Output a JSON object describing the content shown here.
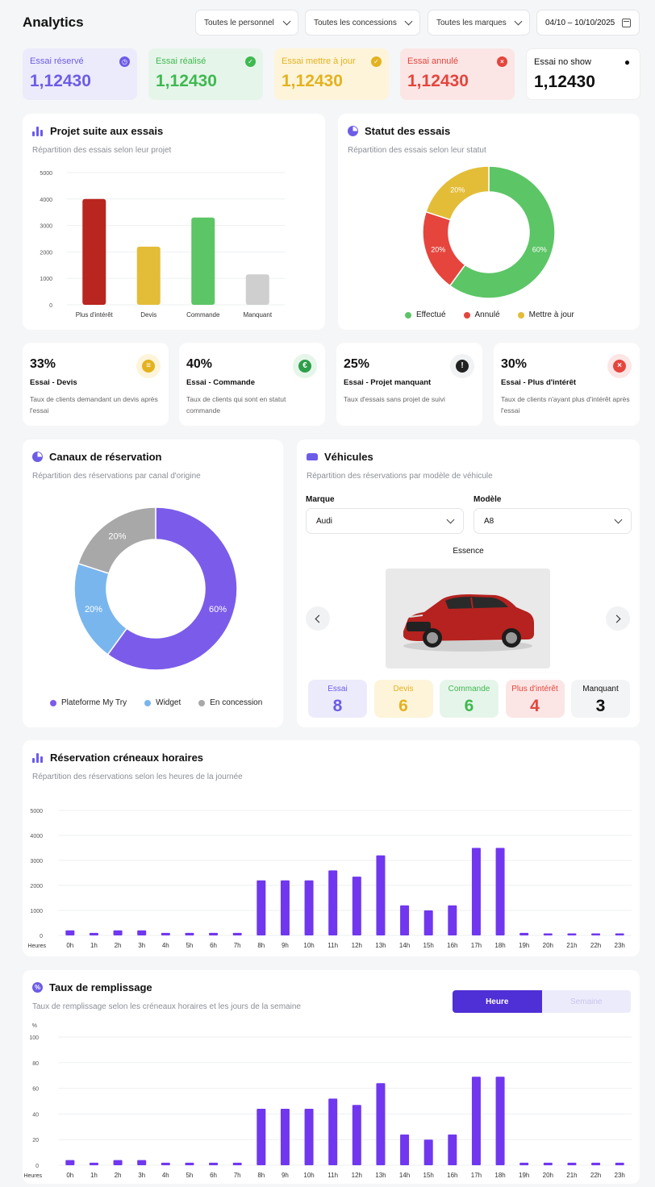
{
  "header": {
    "title": "Analytics",
    "filters": [
      "Toutes le personnel",
      "Toutes les concessions",
      "Toutes les marques"
    ],
    "date_range": "04/10 – 10/10/2025"
  },
  "stats": [
    {
      "label": "Essai réservé",
      "value": "1,12430",
      "color": "#6c5ce7",
      "bg": "#ecebfb",
      "icon": "clock-icon"
    },
    {
      "label": "Essai réalisé",
      "value": "1,12430",
      "color": "#3fb950",
      "bg": "#e6f5ea",
      "icon": "calendar-check-icon"
    },
    {
      "label": "Essai mettre à jour",
      "value": "1,12430",
      "color": "#e3b21f",
      "bg": "#fdf4da",
      "icon": "calendar-refresh-icon"
    },
    {
      "label": "Essai annulé",
      "value": "1,12430",
      "color": "#e5453d",
      "bg": "#fbe6e5",
      "icon": "cancel-icon"
    },
    {
      "label": "Essai no show",
      "value": "1,12430",
      "color": "#111111",
      "bg": "#ffffff",
      "icon": "user-x-icon"
    }
  ],
  "projet_card": {
    "title": "Projet suite aux essais",
    "subtitle": "Répartition des essais selon leur projet"
  },
  "statut_card": {
    "title": "Statut des essais",
    "subtitle": "Répartition des essais selon leur statut"
  },
  "kpis": [
    {
      "pct": "33%",
      "name": "Essai - Devis",
      "desc1": "Taux de clients demandant un devis après",
      "desc2": "l'essai",
      "icon": "document-icon",
      "color": "#e3b21f",
      "bg": "#fdf4da",
      "glyph": "≡"
    },
    {
      "pct": "40%",
      "name": "Essai - Commande",
      "desc1": "Taux de clients qui sont en statut",
      "desc2": "commande",
      "icon": "euro-icon",
      "color": "#2e9e4a",
      "bg": "#e6f5ea",
      "glyph": "€"
    },
    {
      "pct": "25%",
      "name": "Essai - Projet manquant",
      "desc1": "Taux d'essais sans projet de suivi",
      "desc2": "",
      "icon": "alert-icon",
      "color": "#222222",
      "bg": "#f1f2f4",
      "glyph": "!"
    },
    {
      "pct": "30%",
      "name": "Essai - Plus d'intérêt",
      "desc1": "Taux de clients n'ayant plus d'intérêt après",
      "desc2": "l'essai",
      "icon": "cancel-icon",
      "color": "#e5453d",
      "bg": "#fbe6e5",
      "glyph": "×"
    }
  ],
  "canaux_card": {
    "title": "Canaux de réservation",
    "subtitle": "Répartition des réservations par canal d'origine"
  },
  "vehicules": {
    "title": "Véhicules",
    "subtitle": "Répartition des réservations par modèle de véhicule",
    "marque_label": "Marque",
    "marque_value": "Audi",
    "modele_label": "Modèle",
    "modele_value": "A8",
    "fuel": "Essence",
    "counts": [
      {
        "label": "Essai",
        "value": "8",
        "color": "#6c5ce7",
        "bg": "#ecebfb"
      },
      {
        "label": "Devis",
        "value": "6",
        "color": "#e3b21f",
        "bg": "#fdf4da"
      },
      {
        "label": "Commande",
        "value": "6",
        "color": "#3fb950",
        "bg": "#e6f5ea"
      },
      {
        "label": "Plus d'intérêt",
        "value": "4",
        "color": "#e5453d",
        "bg": "#fbe6e5"
      },
      {
        "label": "Manquant",
        "value": "3",
        "color": "#111111",
        "bg": "#f3f4f5"
      }
    ]
  },
  "creneaux_card": {
    "title": "Réservation créneaux horaires",
    "subtitle": "Répartition des réservations selon les heures de la journée"
  },
  "remplissage_card": {
    "title": "Taux de remplissage",
    "subtitle": "Taux de remplissage selon les créneaux horaires et les jours de la semaine",
    "toggle_on": "Heure",
    "toggle_off": "Semaine"
  },
  "chart_data": [
    {
      "type": "bar",
      "categories": [
        "Plus d'intérêt",
        "Devis",
        "Commande",
        "Manquant"
      ],
      "values": [
        4000,
        2200,
        3300,
        1150
      ],
      "colors": [
        "#b8261f",
        "#e3bd38",
        "#5cc566",
        "#cfcfcf"
      ],
      "ylim": [
        0,
        5000
      ],
      "yticks": [
        0,
        1000,
        2000,
        3000,
        4000,
        5000
      ]
    },
    {
      "type": "pie",
      "labels": [
        "Effectué",
        "Annulé",
        "Mettre à jour"
      ],
      "values": [
        60,
        20,
        20
      ],
      "value_labels": [
        "60%",
        "20%",
        "20%"
      ],
      "colors": [
        "#5cc566",
        "#e5453d",
        "#e3bd38"
      ]
    },
    {
      "type": "pie",
      "labels": [
        "Plateforme My Try",
        "Widget",
        "En concession"
      ],
      "values": [
        60,
        20,
        20
      ],
      "value_labels": [
        "60%",
        "20%",
        "20%"
      ],
      "colors": [
        "#7b5cea",
        "#7ab6ee",
        "#a8a8a8"
      ]
    },
    {
      "type": "bar",
      "categories": [
        "0h",
        "1h",
        "2h",
        "3h",
        "4h",
        "5h",
        "6h",
        "7h",
        "8h",
        "9h",
        "10h",
        "11h",
        "12h",
        "13h",
        "14h",
        "15h",
        "16h",
        "17h",
        "18h",
        "19h",
        "20h",
        "21h",
        "22h",
        "23h"
      ],
      "values": [
        200,
        100,
        200,
        200,
        100,
        100,
        100,
        100,
        2200,
        2200,
        2200,
        2600,
        2350,
        3200,
        1200,
        1000,
        1200,
        3500,
        3500,
        100,
        80,
        80,
        80,
        80
      ],
      "xlabel": "Heures",
      "ylim": [
        0,
        5000
      ],
      "yticks": [
        0,
        1000,
        2000,
        3000,
        4000,
        5000
      ]
    },
    {
      "type": "bar",
      "categories": [
        "0h",
        "1h",
        "2h",
        "3h",
        "4h",
        "5h",
        "6h",
        "7h",
        "8h",
        "9h",
        "10h",
        "11h",
        "12h",
        "13h",
        "14h",
        "15h",
        "16h",
        "17h",
        "18h",
        "19h",
        "20h",
        "21h",
        "22h",
        "23h"
      ],
      "values": [
        4,
        2,
        4,
        4,
        2,
        2,
        2,
        2,
        44,
        44,
        44,
        52,
        47,
        64,
        24,
        20,
        24,
        69,
        69,
        2,
        2,
        2,
        2,
        2
      ],
      "xlabel": "Heures",
      "ylabel": "%",
      "ylim": [
        0,
        100
      ],
      "yticks": [
        0,
        20,
        40,
        60,
        80,
        100
      ]
    }
  ]
}
